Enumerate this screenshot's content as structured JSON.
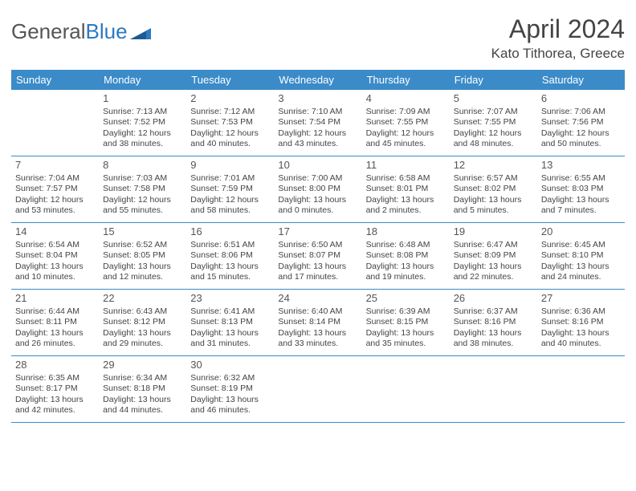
{
  "logo": {
    "text1": "General",
    "text2": "Blue"
  },
  "title": "April 2024",
  "location": "Kato Tithorea, Greece",
  "day_names": [
    "Sunday",
    "Monday",
    "Tuesday",
    "Wednesday",
    "Thursday",
    "Friday",
    "Saturday"
  ],
  "colors": {
    "header_bg": "#3b8bc9",
    "header_fg": "#ffffff",
    "rule": "#3b8bc9",
    "text": "#444444",
    "logo_gray": "#555555",
    "logo_blue": "#2c7ac0"
  },
  "weeks": [
    [
      null,
      {
        "n": "1",
        "sr": "Sunrise: 7:13 AM",
        "ss": "Sunset: 7:52 PM",
        "d1": "Daylight: 12 hours",
        "d2": "and 38 minutes."
      },
      {
        "n": "2",
        "sr": "Sunrise: 7:12 AM",
        "ss": "Sunset: 7:53 PM",
        "d1": "Daylight: 12 hours",
        "d2": "and 40 minutes."
      },
      {
        "n": "3",
        "sr": "Sunrise: 7:10 AM",
        "ss": "Sunset: 7:54 PM",
        "d1": "Daylight: 12 hours",
        "d2": "and 43 minutes."
      },
      {
        "n": "4",
        "sr": "Sunrise: 7:09 AM",
        "ss": "Sunset: 7:55 PM",
        "d1": "Daylight: 12 hours",
        "d2": "and 45 minutes."
      },
      {
        "n": "5",
        "sr": "Sunrise: 7:07 AM",
        "ss": "Sunset: 7:55 PM",
        "d1": "Daylight: 12 hours",
        "d2": "and 48 minutes."
      },
      {
        "n": "6",
        "sr": "Sunrise: 7:06 AM",
        "ss": "Sunset: 7:56 PM",
        "d1": "Daylight: 12 hours",
        "d2": "and 50 minutes."
      }
    ],
    [
      {
        "n": "7",
        "sr": "Sunrise: 7:04 AM",
        "ss": "Sunset: 7:57 PM",
        "d1": "Daylight: 12 hours",
        "d2": "and 53 minutes."
      },
      {
        "n": "8",
        "sr": "Sunrise: 7:03 AM",
        "ss": "Sunset: 7:58 PM",
        "d1": "Daylight: 12 hours",
        "d2": "and 55 minutes."
      },
      {
        "n": "9",
        "sr": "Sunrise: 7:01 AM",
        "ss": "Sunset: 7:59 PM",
        "d1": "Daylight: 12 hours",
        "d2": "and 58 minutes."
      },
      {
        "n": "10",
        "sr": "Sunrise: 7:00 AM",
        "ss": "Sunset: 8:00 PM",
        "d1": "Daylight: 13 hours",
        "d2": "and 0 minutes."
      },
      {
        "n": "11",
        "sr": "Sunrise: 6:58 AM",
        "ss": "Sunset: 8:01 PM",
        "d1": "Daylight: 13 hours",
        "d2": "and 2 minutes."
      },
      {
        "n": "12",
        "sr": "Sunrise: 6:57 AM",
        "ss": "Sunset: 8:02 PM",
        "d1": "Daylight: 13 hours",
        "d2": "and 5 minutes."
      },
      {
        "n": "13",
        "sr": "Sunrise: 6:55 AM",
        "ss": "Sunset: 8:03 PM",
        "d1": "Daylight: 13 hours",
        "d2": "and 7 minutes."
      }
    ],
    [
      {
        "n": "14",
        "sr": "Sunrise: 6:54 AM",
        "ss": "Sunset: 8:04 PM",
        "d1": "Daylight: 13 hours",
        "d2": "and 10 minutes."
      },
      {
        "n": "15",
        "sr": "Sunrise: 6:52 AM",
        "ss": "Sunset: 8:05 PM",
        "d1": "Daylight: 13 hours",
        "d2": "and 12 minutes."
      },
      {
        "n": "16",
        "sr": "Sunrise: 6:51 AM",
        "ss": "Sunset: 8:06 PM",
        "d1": "Daylight: 13 hours",
        "d2": "and 15 minutes."
      },
      {
        "n": "17",
        "sr": "Sunrise: 6:50 AM",
        "ss": "Sunset: 8:07 PM",
        "d1": "Daylight: 13 hours",
        "d2": "and 17 minutes."
      },
      {
        "n": "18",
        "sr": "Sunrise: 6:48 AM",
        "ss": "Sunset: 8:08 PM",
        "d1": "Daylight: 13 hours",
        "d2": "and 19 minutes."
      },
      {
        "n": "19",
        "sr": "Sunrise: 6:47 AM",
        "ss": "Sunset: 8:09 PM",
        "d1": "Daylight: 13 hours",
        "d2": "and 22 minutes."
      },
      {
        "n": "20",
        "sr": "Sunrise: 6:45 AM",
        "ss": "Sunset: 8:10 PM",
        "d1": "Daylight: 13 hours",
        "d2": "and 24 minutes."
      }
    ],
    [
      {
        "n": "21",
        "sr": "Sunrise: 6:44 AM",
        "ss": "Sunset: 8:11 PM",
        "d1": "Daylight: 13 hours",
        "d2": "and 26 minutes."
      },
      {
        "n": "22",
        "sr": "Sunrise: 6:43 AM",
        "ss": "Sunset: 8:12 PM",
        "d1": "Daylight: 13 hours",
        "d2": "and 29 minutes."
      },
      {
        "n": "23",
        "sr": "Sunrise: 6:41 AM",
        "ss": "Sunset: 8:13 PM",
        "d1": "Daylight: 13 hours",
        "d2": "and 31 minutes."
      },
      {
        "n": "24",
        "sr": "Sunrise: 6:40 AM",
        "ss": "Sunset: 8:14 PM",
        "d1": "Daylight: 13 hours",
        "d2": "and 33 minutes."
      },
      {
        "n": "25",
        "sr": "Sunrise: 6:39 AM",
        "ss": "Sunset: 8:15 PM",
        "d1": "Daylight: 13 hours",
        "d2": "and 35 minutes."
      },
      {
        "n": "26",
        "sr": "Sunrise: 6:37 AM",
        "ss": "Sunset: 8:16 PM",
        "d1": "Daylight: 13 hours",
        "d2": "and 38 minutes."
      },
      {
        "n": "27",
        "sr": "Sunrise: 6:36 AM",
        "ss": "Sunset: 8:16 PM",
        "d1": "Daylight: 13 hours",
        "d2": "and 40 minutes."
      }
    ],
    [
      {
        "n": "28",
        "sr": "Sunrise: 6:35 AM",
        "ss": "Sunset: 8:17 PM",
        "d1": "Daylight: 13 hours",
        "d2": "and 42 minutes."
      },
      {
        "n": "29",
        "sr": "Sunrise: 6:34 AM",
        "ss": "Sunset: 8:18 PM",
        "d1": "Daylight: 13 hours",
        "d2": "and 44 minutes."
      },
      {
        "n": "30",
        "sr": "Sunrise: 6:32 AM",
        "ss": "Sunset: 8:19 PM",
        "d1": "Daylight: 13 hours",
        "d2": "and 46 minutes."
      },
      null,
      null,
      null,
      null
    ]
  ]
}
